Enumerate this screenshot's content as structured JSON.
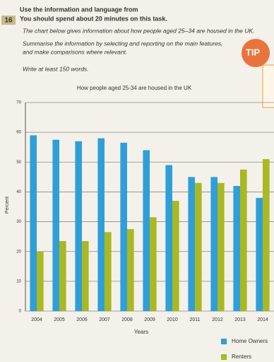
{
  "page": {
    "task_number": "16",
    "line1": "Use the information and language from",
    "line2": "You should spend about 20 minutes on this task.",
    "prompt1": "The chart below gives information about how people aged 25–34 are housed in the UK.",
    "prompt2": "Summarise the information by selecting and reporting on the main features,",
    "prompt3": "and make comparisons where relevant.",
    "prompt4": "Write at least 150 words.",
    "tip": "TIP"
  },
  "chart_data": {
    "type": "bar",
    "title": "How people aged 25-34 are housed in the UK",
    "x_label": "Years",
    "y_label": "Percent",
    "categories": [
      "2004",
      "2005",
      "2006",
      "2007",
      "2008",
      "2009",
      "2010",
      "2011",
      "2012",
      "2013",
      "2014"
    ],
    "series": [
      {
        "name": "Home Owners",
        "color": "#2e9fd8",
        "values": [
          59,
          57.5,
          57,
          58,
          56.5,
          54,
          49,
          45,
          45,
          42,
          38
        ]
      },
      {
        "name": "Renters",
        "color": "#a9b823",
        "values": [
          20,
          23.5,
          23.5,
          26.5,
          27.5,
          31.5,
          37,
          43,
          43,
          47.5,
          51
        ]
      }
    ],
    "ylim": [
      0,
      70
    ],
    "yticks": [
      0,
      10,
      20,
      30,
      40,
      50,
      60,
      70
    ],
    "grid": true,
    "legend": "lower right"
  }
}
